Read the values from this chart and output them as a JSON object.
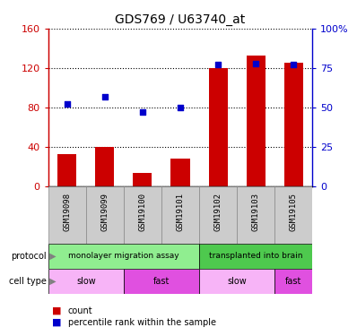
{
  "title": "GDS769 / U63740_at",
  "samples": [
    "GSM19098",
    "GSM19099",
    "GSM19100",
    "GSM19101",
    "GSM19102",
    "GSM19103",
    "GSM19105"
  ],
  "bar_values": [
    33,
    40,
    14,
    28,
    120,
    133,
    125
  ],
  "scatter_values": [
    52,
    57,
    47,
    50,
    77,
    78,
    77
  ],
  "ylim_left": [
    0,
    160
  ],
  "ylim_right": [
    0,
    100
  ],
  "yticks_left": [
    0,
    40,
    80,
    120,
    160
  ],
  "ytick_labels_left": [
    "0",
    "40",
    "80",
    "120",
    "160"
  ],
  "yticks_right": [
    0,
    25,
    50,
    75,
    100
  ],
  "ytick_labels_right": [
    "0",
    "25",
    "50",
    "75",
    "100%"
  ],
  "bar_color": "#cc0000",
  "scatter_color": "#0000cc",
  "protocol_groups": [
    {
      "label": "monolayer migration assay",
      "start": 0,
      "end": 4,
      "color": "#90ee90"
    },
    {
      "label": "transplanted into brain",
      "start": 4,
      "end": 7,
      "color": "#4ec94e"
    }
  ],
  "cell_type_groups": [
    {
      "label": "slow",
      "start": 0,
      "end": 2,
      "color": "#f7b4f7"
    },
    {
      "label": "fast",
      "start": 2,
      "end": 4,
      "color": "#e050e0"
    },
    {
      "label": "slow",
      "start": 4,
      "end": 6,
      "color": "#f7b4f7"
    },
    {
      "label": "fast",
      "start": 6,
      "end": 7,
      "color": "#e050e0"
    }
  ],
  "legend_items": [
    {
      "label": "count",
      "color": "#cc0000"
    },
    {
      "label": "percentile rank within the sample",
      "color": "#0000cc"
    }
  ],
  "left_axis_color": "#cc0000",
  "right_axis_color": "#0000cc",
  "sample_bg_color": "#cccccc",
  "sample_border_color": "#888888"
}
